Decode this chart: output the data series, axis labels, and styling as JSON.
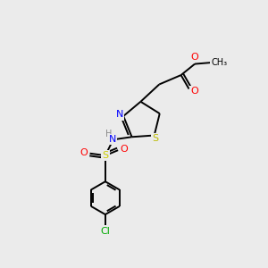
{
  "background_color": "#ebebeb",
  "atom_colors": {
    "C": "#000000",
    "H": "#888888",
    "N": "#0000ff",
    "O": "#ff0000",
    "S_thiazole": "#bbbb00",
    "S_sulfonyl": "#cccc00",
    "Cl": "#00aa00"
  },
  "lw": 1.4,
  "figsize": [
    3.0,
    3.0
  ],
  "dpi": 100,
  "xlim": [
    0,
    10
  ],
  "ylim": [
    0,
    10
  ],
  "fs": 8,
  "fs_small": 7
}
